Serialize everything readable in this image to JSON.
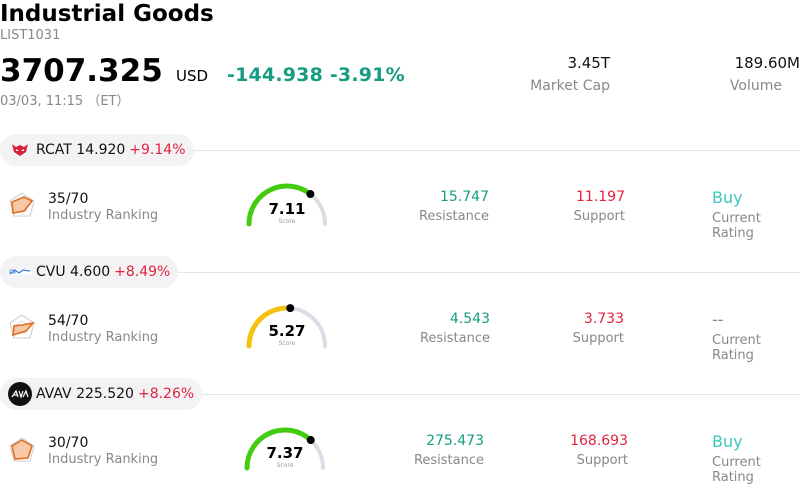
{
  "header": {
    "title": "Industrial Goods",
    "code": "LIST1031",
    "price": "3707.325",
    "currency": "USD",
    "change": "-144.938 -3.91%",
    "time": "03/03, 11:15 （ET）",
    "market_cap": {
      "value": "3.45T",
      "label": "Market Cap"
    },
    "volume": {
      "value": "189.60M",
      "label": "Volume"
    }
  },
  "colors": {
    "up_green": "#169c83",
    "down_red": "#e2233d",
    "gauge_green": "#44cc11",
    "gauge_yellow": "#f5c211",
    "gauge_track": "#dcdce6",
    "buy_teal": "#3cc8bd"
  },
  "stocks": [
    {
      "logo_icon": "rcat-logo-icon",
      "ticker_price": "RCAT 14.920",
      "pct": "+9.14%",
      "ranking": "35/70",
      "ranking_label": "Industry Ranking",
      "score": "7.11",
      "score_value": 7.11,
      "score_label": "Score",
      "resistance": "15.747",
      "resistance_label": "Resistance",
      "support": "11.197",
      "support_label": "Support",
      "rating": "Buy",
      "rating_label": "Current Rating"
    },
    {
      "logo_icon": "cvu-logo-icon",
      "ticker_price": "CVU 4.600",
      "pct": "+8.49%",
      "ranking": "54/70",
      "ranking_label": "Industry Ranking",
      "score": "5.27",
      "score_value": 5.27,
      "score_label": "Score",
      "resistance": "4.543",
      "resistance_label": "Resistance",
      "support": "3.733",
      "support_label": "Support",
      "rating": "--",
      "rating_label": "Current Rating"
    },
    {
      "logo_icon": "avav-logo-icon",
      "ticker_price": "AVAV 225.520",
      "pct": "+8.26%",
      "ranking": "30/70",
      "ranking_label": "Industry Ranking",
      "score": "7.37",
      "score_value": 7.37,
      "score_label": "Score",
      "resistance": "275.473",
      "resistance_label": "Resistance",
      "support": "168.693",
      "support_label": "Support",
      "rating": "Buy",
      "rating_label": "Current Rating"
    }
  ]
}
